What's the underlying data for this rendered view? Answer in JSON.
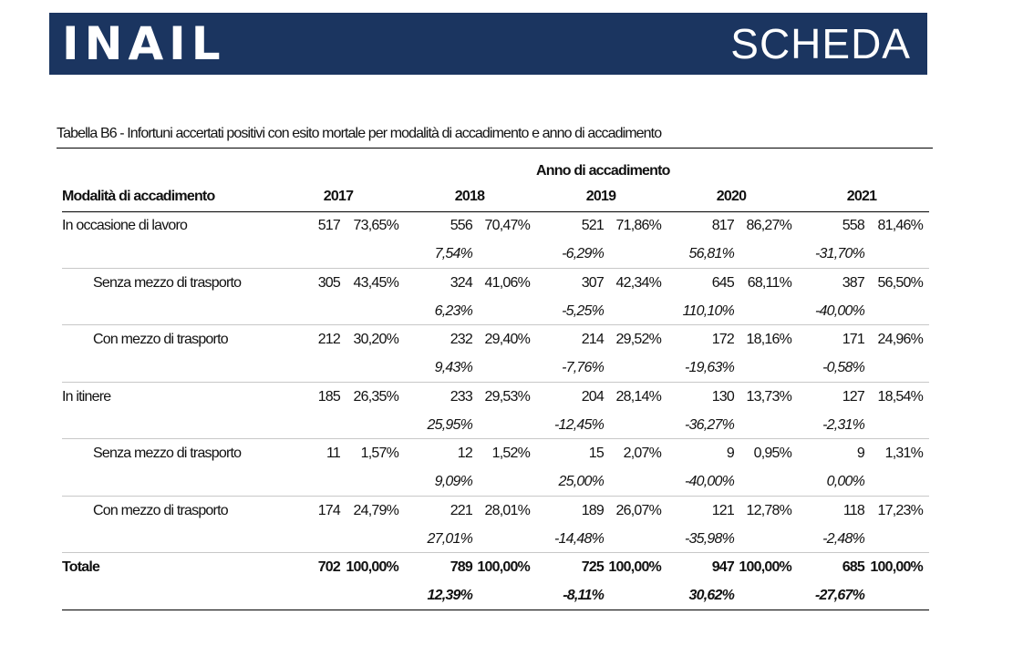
{
  "header": {
    "logo_text": "INAIL",
    "title": "SCHEDA",
    "brand_color": "#1b3560"
  },
  "table": {
    "caption": "Tabella B6 - Infortuni accertati positivi con esito mortale per modalità di accadimento e anno di accadimento",
    "group_header": "Anno di accadimento",
    "row_header": "Modalità di accadimento",
    "years": [
      "2017",
      "2018",
      "2019",
      "2020",
      "2021"
    ],
    "rows": [
      {
        "label": "In occasione di lavoro",
        "indent": false,
        "bold": false,
        "values": [
          {
            "n": "517",
            "pct": "73,65%",
            "var": ""
          },
          {
            "n": "556",
            "pct": "70,47%",
            "var": "7,54%"
          },
          {
            "n": "521",
            "pct": "71,86%",
            "var": "-6,29%"
          },
          {
            "n": "817",
            "pct": "86,27%",
            "var": "56,81%"
          },
          {
            "n": "558",
            "pct": "81,46%",
            "var": "-31,70%"
          }
        ]
      },
      {
        "label": "Senza mezzo di trasporto",
        "indent": true,
        "bold": false,
        "values": [
          {
            "n": "305",
            "pct": "43,45%",
            "var": ""
          },
          {
            "n": "324",
            "pct": "41,06%",
            "var": "6,23%"
          },
          {
            "n": "307",
            "pct": "42,34%",
            "var": "-5,25%"
          },
          {
            "n": "645",
            "pct": "68,11%",
            "var": "110,10%"
          },
          {
            "n": "387",
            "pct": "56,50%",
            "var": "-40,00%"
          }
        ]
      },
      {
        "label": "Con mezzo di trasporto",
        "indent": true,
        "bold": false,
        "values": [
          {
            "n": "212",
            "pct": "30,20%",
            "var": ""
          },
          {
            "n": "232",
            "pct": "29,40%",
            "var": "9,43%"
          },
          {
            "n": "214",
            "pct": "29,52%",
            "var": "-7,76%"
          },
          {
            "n": "172",
            "pct": "18,16%",
            "var": "-19,63%"
          },
          {
            "n": "171",
            "pct": "24,96%",
            "var": "-0,58%"
          }
        ]
      },
      {
        "label": "In itinere",
        "indent": false,
        "bold": false,
        "values": [
          {
            "n": "185",
            "pct": "26,35%",
            "var": ""
          },
          {
            "n": "233",
            "pct": "29,53%",
            "var": "25,95%"
          },
          {
            "n": "204",
            "pct": "28,14%",
            "var": "-12,45%"
          },
          {
            "n": "130",
            "pct": "13,73%",
            "var": "-36,27%"
          },
          {
            "n": "127",
            "pct": "18,54%",
            "var": "-2,31%"
          }
        ]
      },
      {
        "label": "Senza mezzo di trasporto",
        "indent": true,
        "bold": false,
        "values": [
          {
            "n": "11",
            "pct": "1,57%",
            "var": ""
          },
          {
            "n": "12",
            "pct": "1,52%",
            "var": "9,09%"
          },
          {
            "n": "15",
            "pct": "2,07%",
            "var": "25,00%"
          },
          {
            "n": "9",
            "pct": "0,95%",
            "var": "-40,00%"
          },
          {
            "n": "9",
            "pct": "1,31%",
            "var": "0,00%"
          }
        ]
      },
      {
        "label": "Con mezzo di trasporto",
        "indent": true,
        "bold": false,
        "values": [
          {
            "n": "174",
            "pct": "24,79%",
            "var": ""
          },
          {
            "n": "221",
            "pct": "28,01%",
            "var": "27,01%"
          },
          {
            "n": "189",
            "pct": "26,07%",
            "var": "-14,48%"
          },
          {
            "n": "121",
            "pct": "12,78%",
            "var": "-35,98%"
          },
          {
            "n": "118",
            "pct": "17,23%",
            "var": "-2,48%"
          }
        ]
      },
      {
        "label": "Totale",
        "indent": false,
        "bold": true,
        "values": [
          {
            "n": "702",
            "pct": "100,00%",
            "var": ""
          },
          {
            "n": "789",
            "pct": "100,00%",
            "var": "12,39%"
          },
          {
            "n": "725",
            "pct": "100,00%",
            "var": "-8,11%"
          },
          {
            "n": "947",
            "pct": "100,00%",
            "var": "30,62%"
          },
          {
            "n": "685",
            "pct": "100,00%",
            "var": "-27,67%"
          }
        ]
      }
    ]
  }
}
